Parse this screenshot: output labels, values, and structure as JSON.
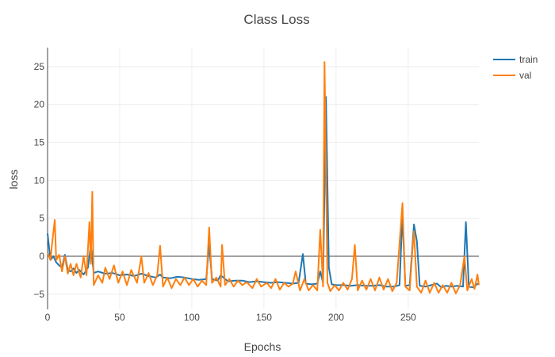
{
  "chart_data": {
    "type": "line",
    "title": "Class Loss",
    "xlabel": "Epochs",
    "ylabel": "loss",
    "xlim": [
      0,
      299
    ],
    "ylim": [
      -7,
      27.5
    ],
    "xticks": [
      0,
      50,
      100,
      150,
      200,
      250
    ],
    "yticks": [
      -5,
      0,
      5,
      10,
      15,
      20,
      25
    ],
    "grid": true,
    "zero_line": true,
    "legend_position": "top-right",
    "series": [
      {
        "name": "train",
        "color": "#1f77b4",
        "points": [
          [
            0,
            3.0
          ],
          [
            2,
            -0.5
          ],
          [
            4,
            0.0
          ],
          [
            6,
            -0.8
          ],
          [
            8,
            -1.2
          ],
          [
            10,
            -1.5
          ],
          [
            12,
            0.2
          ],
          [
            14,
            -1.8
          ],
          [
            16,
            -2.0
          ],
          [
            18,
            -1.6
          ],
          [
            20,
            -2.2
          ],
          [
            22,
            -1.8
          ],
          [
            25,
            -2.4
          ],
          [
            28,
            -1.5
          ],
          [
            30,
            1.5
          ],
          [
            32,
            -2.2
          ],
          [
            35,
            -2.0
          ],
          [
            40,
            -2.3
          ],
          [
            45,
            -2.2
          ],
          [
            50,
            -2.5
          ],
          [
            55,
            -2.4
          ],
          [
            60,
            -2.6
          ],
          [
            65,
            -2.3
          ],
          [
            70,
            -2.6
          ],
          [
            75,
            -2.8
          ],
          [
            78,
            -2.4
          ],
          [
            80,
            -2.8
          ],
          [
            85,
            -2.9
          ],
          [
            90,
            -2.7
          ],
          [
            95,
            -2.8
          ],
          [
            100,
            -3.0
          ],
          [
            105,
            -3.1
          ],
          [
            110,
            -3.0
          ],
          [
            112,
            1.5
          ],
          [
            114,
            -3.0
          ],
          [
            118,
            -3.2
          ],
          [
            120,
            -2.5
          ],
          [
            125,
            -3.3
          ],
          [
            130,
            -3.2
          ],
          [
            135,
            -3.2
          ],
          [
            140,
            -3.4
          ],
          [
            145,
            -3.3
          ],
          [
            150,
            -3.4
          ],
          [
            155,
            -3.5
          ],
          [
            160,
            -3.4
          ],
          [
            165,
            -3.5
          ],
          [
            170,
            -3.6
          ],
          [
            174,
            -3.5
          ],
          [
            177,
            0.3
          ],
          [
            179,
            -3.6
          ],
          [
            183,
            -3.7
          ],
          [
            187,
            -3.6
          ],
          [
            189,
            -2.0
          ],
          [
            191,
            -3.5
          ],
          [
            193,
            21.0
          ],
          [
            195,
            -1.5
          ],
          [
            197,
            -3.7
          ],
          [
            200,
            -3.8
          ],
          [
            205,
            -3.8
          ],
          [
            210,
            -3.9
          ],
          [
            215,
            -3.8
          ],
          [
            220,
            -3.9
          ],
          [
            225,
            -3.9
          ],
          [
            230,
            -3.8
          ],
          [
            235,
            -4.0
          ],
          [
            240,
            -4.0
          ],
          [
            244,
            -3.8
          ],
          [
            246,
            5.5
          ],
          [
            248,
            -3.9
          ],
          [
            251,
            -3.8
          ],
          [
            253,
            1.5
          ],
          [
            254,
            4.2
          ],
          [
            256,
            2.0
          ],
          [
            258,
            -3.9
          ],
          [
            262,
            -4.0
          ],
          [
            266,
            -3.8
          ],
          [
            270,
            -3.6
          ],
          [
            273,
            -4.1
          ],
          [
            276,
            -3.9
          ],
          [
            280,
            -4.0
          ],
          [
            284,
            -3.9
          ],
          [
            288,
            -4.0
          ],
          [
            290,
            4.5
          ],
          [
            292,
            -4.0
          ],
          [
            295,
            -4.1
          ],
          [
            299,
            -3.5
          ]
        ]
      },
      {
        "name": "val",
        "color": "#ff7f0e",
        "points": [
          [
            0,
            0.5
          ],
          [
            2,
            -0.5
          ],
          [
            3,
            1.5
          ],
          [
            5,
            4.8
          ],
          [
            6,
            -0.5
          ],
          [
            8,
            0.2
          ],
          [
            10,
            -2.0
          ],
          [
            12,
            0.0
          ],
          [
            14,
            -2.3
          ],
          [
            16,
            -1.0
          ],
          [
            18,
            -2.5
          ],
          [
            20,
            -1.0
          ],
          [
            23,
            -2.8
          ],
          [
            25,
            0.0
          ],
          [
            27,
            -2.5
          ],
          [
            29,
            4.5
          ],
          [
            30,
            -1.0
          ],
          [
            31,
            8.5
          ],
          [
            32,
            -3.8
          ],
          [
            35,
            -2.5
          ],
          [
            38,
            -3.5
          ],
          [
            40,
            -1.5
          ],
          [
            43,
            -3.0
          ],
          [
            46,
            -1.2
          ],
          [
            49,
            -3.5
          ],
          [
            52,
            -2.0
          ],
          [
            55,
            -3.8
          ],
          [
            58,
            -1.8
          ],
          [
            62,
            -3.5
          ],
          [
            65,
            0.0
          ],
          [
            67,
            -3.5
          ],
          [
            70,
            -2.2
          ],
          [
            73,
            -3.8
          ],
          [
            76,
            -2.5
          ],
          [
            78,
            1.4
          ],
          [
            80,
            -4.0
          ],
          [
            83,
            -2.8
          ],
          [
            86,
            -4.2
          ],
          [
            89,
            -3.0
          ],
          [
            92,
            -3.8
          ],
          [
            95,
            -2.8
          ],
          [
            98,
            -3.8
          ],
          [
            101,
            -3.0
          ],
          [
            104,
            -4.0
          ],
          [
            107,
            -3.2
          ],
          [
            110,
            -3.8
          ],
          [
            112,
            3.8
          ],
          [
            114,
            -3.5
          ],
          [
            117,
            -2.8
          ],
          [
            120,
            -4.0
          ],
          [
            121,
            1.5
          ],
          [
            123,
            -3.8
          ],
          [
            126,
            -3.0
          ],
          [
            129,
            -4.0
          ],
          [
            132,
            -3.2
          ],
          [
            135,
            -3.8
          ],
          [
            138,
            -3.4
          ],
          [
            142,
            -4.2
          ],
          [
            145,
            -3.0
          ],
          [
            148,
            -4.0
          ],
          [
            152,
            -3.5
          ],
          [
            155,
            -4.2
          ],
          [
            158,
            -3.0
          ],
          [
            161,
            -4.4
          ],
          [
            164,
            -3.5
          ],
          [
            167,
            -4.0
          ],
          [
            170,
            -3.6
          ],
          [
            172,
            -2.0
          ],
          [
            175,
            -4.5
          ],
          [
            178,
            -3.0
          ],
          [
            181,
            -4.5
          ],
          [
            184,
            -3.8
          ],
          [
            187,
            -4.5
          ],
          [
            189,
            3.5
          ],
          [
            191,
            -4.0
          ],
          [
            192,
            25.6
          ],
          [
            194,
            -3.5
          ],
          [
            196,
            -4.6
          ],
          [
            199,
            -3.8
          ],
          [
            202,
            -4.5
          ],
          [
            205,
            -3.5
          ],
          [
            208,
            -4.4
          ],
          [
            211,
            -3.0
          ],
          [
            213,
            1.5
          ],
          [
            215,
            -4.5
          ],
          [
            218,
            -3.2
          ],
          [
            221,
            -4.4
          ],
          [
            224,
            -3.0
          ],
          [
            227,
            -4.5
          ],
          [
            230,
            -2.8
          ],
          [
            233,
            -4.4
          ],
          [
            236,
            -3.0
          ],
          [
            239,
            -4.6
          ],
          [
            242,
            -3.5
          ],
          [
            246,
            7.0
          ],
          [
            248,
            -4.0
          ],
          [
            251,
            -4.5
          ],
          [
            253,
            1.0
          ],
          [
            254,
            3.3
          ],
          [
            256,
            -4.0
          ],
          [
            259,
            -4.8
          ],
          [
            262,
            -3.2
          ],
          [
            265,
            -4.8
          ],
          [
            268,
            -3.5
          ],
          [
            271,
            -4.8
          ],
          [
            274,
            -3.8
          ],
          [
            277,
            -4.8
          ],
          [
            280,
            -3.5
          ],
          [
            283,
            -4.9
          ],
          [
            286,
            -3.8
          ],
          [
            289,
            0.0
          ],
          [
            291,
            -4.5
          ],
          [
            294,
            -3.0
          ],
          [
            296,
            -4.3
          ],
          [
            298,
            -2.4
          ],
          [
            299,
            -3.8
          ]
        ]
      }
    ]
  }
}
